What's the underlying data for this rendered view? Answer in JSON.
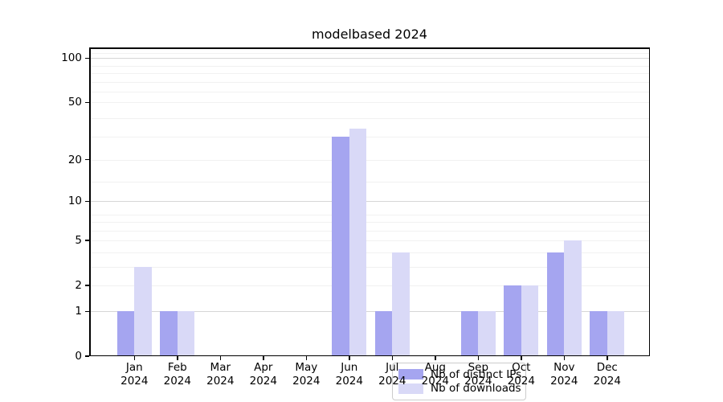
{
  "chart_data": {
    "type": "bar",
    "title": "modelbased 2024",
    "categories": [
      "Jan",
      "Feb",
      "Mar",
      "Apr",
      "May",
      "Jun",
      "Jul",
      "Aug",
      "Sep",
      "Oct",
      "Nov",
      "Dec"
    ],
    "year_label": "2024",
    "series": [
      {
        "name": "Nb of distinct IPs",
        "color": "#a5a5f0",
        "values": [
          1,
          1,
          0,
          0,
          0,
          29,
          1,
          0,
          1,
          2,
          4,
          1
        ]
      },
      {
        "name": "Nb of downloads",
        "color": "#d9d9f7",
        "values": [
          3,
          1,
          0,
          0,
          0,
          33,
          4,
          0,
          1,
          2,
          5,
          1
        ]
      }
    ],
    "xlabel": "",
    "ylabel": "",
    "y_axis": {
      "scale": "log1p",
      "tick_values": [
        100,
        50,
        20,
        10,
        5,
        2,
        1,
        0
      ],
      "ylim": [
        0,
        118
      ]
    },
    "grid": {
      "on": true,
      "minor_line_values": [
        2,
        3,
        4,
        5,
        6,
        7,
        8,
        14,
        20,
        29,
        39,
        50,
        59,
        69,
        79,
        89,
        109
      ],
      "major_line_values": [
        1,
        10,
        100
      ]
    },
    "legend": {
      "position": "lower center"
    }
  }
}
